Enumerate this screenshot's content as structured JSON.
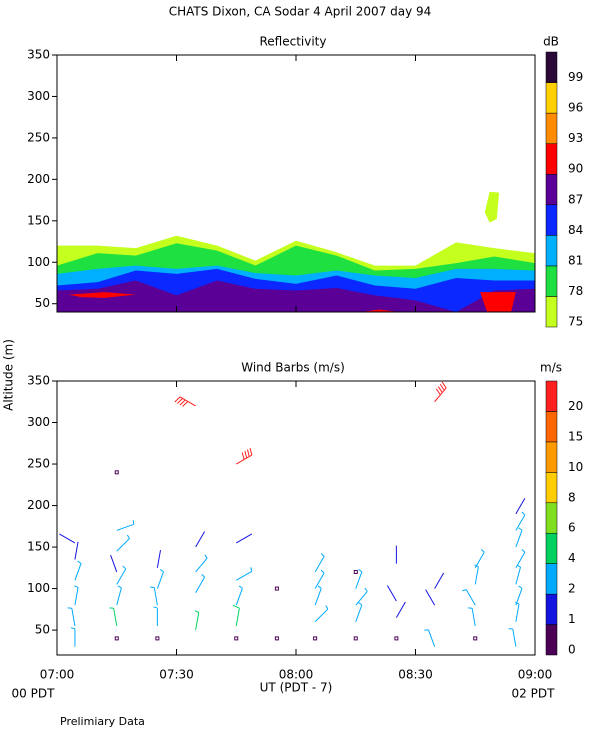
{
  "title": "CHATS Dixon, CA  Sodar    4 April 2007   day  94",
  "ylabel": "Altitude (m)",
  "xlabel": "UT  (PDT - 7)",
  "x_sub_labels": [
    "00 PDT",
    "02 PDT"
  ],
  "footer": "Prelimiary Data",
  "chart_data": [
    {
      "type": "contour",
      "title": "Reflectivity",
      "colorbar_label": "dB",
      "colorbar": {
        "levels": [
          75,
          78,
          81,
          84,
          87,
          90,
          93,
          96,
          99
        ],
        "colors": [
          "#c4ff1e",
          "#1ee040",
          "#00b0ff",
          "#0a28ff",
          "#5a0096",
          "#ff0000",
          "#ff8c00",
          "#ffd000",
          "#2a0838"
        ]
      },
      "xlim": [
        7,
        9
      ],
      "ylim": [
        40,
        350
      ],
      "yticks": [
        50,
        100,
        150,
        200,
        250,
        300,
        350
      ],
      "x": [
        7,
        7.17,
        7.33,
        7.5,
        7.67,
        7.83,
        8,
        8.17,
        8.33,
        8.5,
        8.67,
        8.83,
        9
      ],
      "layers": [
        {
          "level": 75,
          "top": [
            120,
            120,
            117,
            132,
            120,
            102,
            126,
            112,
            96,
            96,
            124,
            117,
            111
          ]
        },
        {
          "level": 78,
          "top": [
            96,
            111,
            108,
            123,
            114,
            96,
            120,
            108,
            90,
            92,
            99,
            107,
            99
          ]
        },
        {
          "level": 81,
          "top": [
            86,
            92,
            96,
            92,
            96,
            87,
            84,
            90,
            84,
            81,
            92,
            92,
            90
          ]
        },
        {
          "level": 84,
          "top": [
            72,
            76,
            90,
            86,
            92,
            80,
            74,
            84,
            72,
            68,
            81,
            78,
            78
          ]
        },
        {
          "level": 87,
          "top": [
            66,
            68,
            78,
            60,
            78,
            68,
            66,
            69,
            60,
            54,
            40,
            66,
            68
          ]
        }
      ],
      "patches": [
        {
          "level": 90,
          "x": [
            7.05,
            7.2,
            7.33,
            7.2,
            7.1
          ],
          "y": [
            61,
            64,
            61,
            57,
            58
          ]
        },
        {
          "level": 90,
          "x": [
            8.77,
            8.92,
            8.9,
            8.8
          ],
          "y": [
            64,
            64,
            40,
            40
          ]
        },
        {
          "level": 90,
          "x": [
            8.27,
            8.35,
            8.43
          ],
          "y": [
            40,
            43,
            40
          ]
        },
        {
          "level": 75,
          "x": [
            8.79,
            8.81,
            8.85,
            8.84,
            8.81
          ],
          "y": [
            160,
            185,
            184,
            152,
            148
          ]
        }
      ]
    },
    {
      "type": "barbs",
      "title": "Wind Barbs (m/s)",
      "colorbar_label": "m/s",
      "colorbar": {
        "levels": [
          0,
          1,
          2,
          4,
          6,
          8,
          10,
          15,
          20
        ],
        "colors": [
          "#4b0055",
          "#1414e0",
          "#00aaff",
          "#00d060",
          "#80e020",
          "#ffcc00",
          "#ff9900",
          "#ff6600",
          "#ff2020"
        ]
      },
      "xlim": [
        7,
        9
      ],
      "ylim": [
        20,
        350
      ],
      "yticks": [
        50,
        100,
        150,
        200,
        250,
        300,
        350
      ],
      "xticks": [
        {
          "value": 7,
          "label": "07:00"
        },
        {
          "value": 7.5,
          "label": "07:30"
        },
        {
          "value": 8,
          "label": "08:00"
        },
        {
          "value": 8.5,
          "label": "08:30"
        },
        {
          "value": 9,
          "label": "09:00"
        }
      ],
      "x": [
        7.075,
        7.075,
        7.075,
        7.075,
        7.075,
        7.075,
        7.25,
        7.25,
        7.25,
        7.25,
        7.25,
        7.25,
        7.25,
        7.25,
        7.42,
        7.42,
        7.42,
        7.42,
        7.42,
        7.58,
        7.58,
        7.58,
        7.58,
        7.58,
        7.75,
        7.75,
        7.75,
        7.75,
        7.75,
        7.75,
        7.92,
        7.92,
        8.08,
        8.08,
        8.08,
        8.08,
        8.08,
        8.25,
        8.25,
        8.25,
        8.25,
        8.25,
        8.42,
        8.42,
        8.42,
        8.42,
        8.58,
        8.58,
        8.58,
        8.58,
        8.75,
        8.75,
        8.75,
        8.75,
        8.75,
        8.92,
        8.92,
        8.92,
        8.92,
        8.92,
        8.92,
        8.92,
        8.92
      ],
      "altitude": [
        30,
        55,
        80,
        110,
        135,
        155,
        40,
        55,
        80,
        105,
        120,
        145,
        170,
        240,
        40,
        55,
        80,
        100,
        125,
        50,
        95,
        120,
        150,
        320,
        40,
        55,
        80,
        110,
        155,
        250,
        40,
        100,
        40,
        60,
        80,
        100,
        120,
        40,
        60,
        80,
        100,
        120,
        40,
        65,
        85,
        130,
        30,
        80,
        100,
        325,
        40,
        55,
        80,
        105,
        125,
        30,
        60,
        80,
        105,
        125,
        150,
        170,
        190
      ],
      "speed": [
        2.5,
        3,
        3,
        3,
        1.5,
        1.5,
        0,
        4.5,
        3,
        3,
        1.5,
        3,
        2.5,
        0,
        0,
        3,
        3,
        2.5,
        1.5,
        4.5,
        3,
        3,
        1.5,
        20,
        0,
        5,
        3,
        3,
        1.5,
        20,
        0,
        0,
        0,
        3,
        3,
        3,
        3,
        0,
        3,
        3,
        3,
        0,
        0,
        1.5,
        1.5,
        1.5,
        2.5,
        1.5,
        1.5,
        20,
        0,
        3,
        3,
        3,
        3,
        2.5,
        3,
        3,
        3,
        3,
        3,
        3,
        1.5
      ],
      "direction": [
        0,
        350,
        10,
        20,
        10,
        300,
        0,
        350,
        15,
        30,
        340,
        45,
        70,
        0,
        0,
        0,
        350,
        20,
        10,
        10,
        30,
        40,
        30,
        300,
        0,
        10,
        20,
        60,
        60,
        60,
        0,
        0,
        0,
        45,
        20,
        30,
        30,
        0,
        20,
        40,
        20,
        0,
        0,
        30,
        330,
        0,
        340,
        330,
        30,
        40,
        0,
        350,
        330,
        10,
        30,
        350,
        10,
        20,
        15,
        30,
        20,
        30,
        30
      ]
    }
  ]
}
